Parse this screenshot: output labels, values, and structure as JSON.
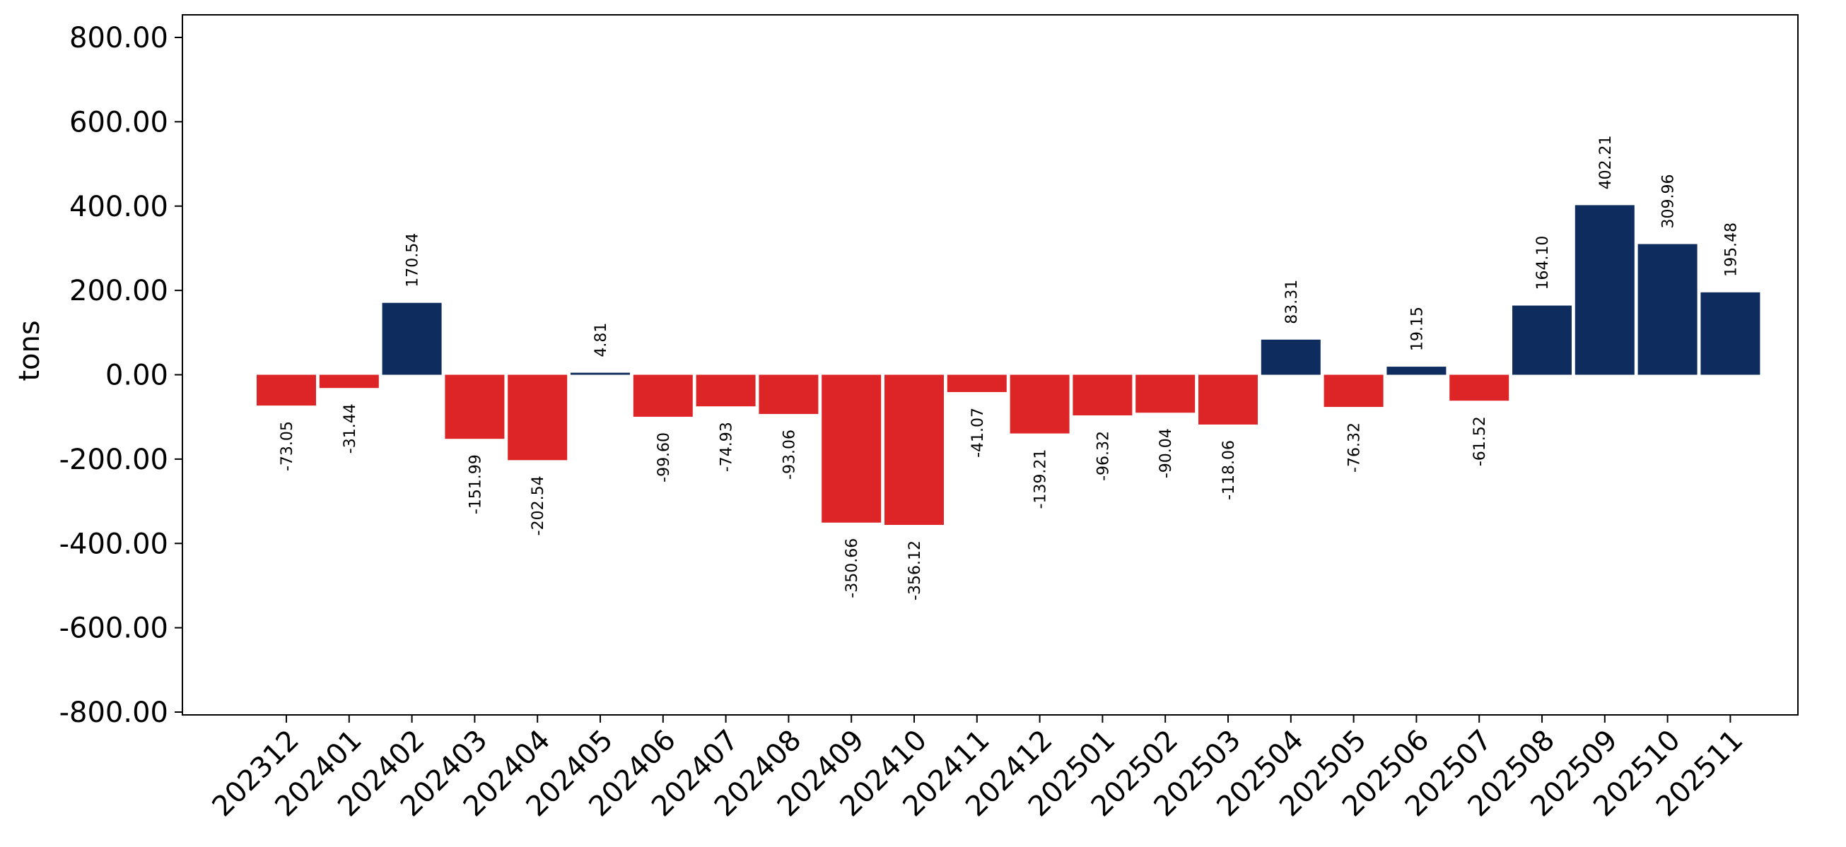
{
  "chart_data": {
    "type": "bar",
    "title": "",
    "xlabel": "",
    "ylabel": "tons",
    "ylim": [
      -800,
      800
    ],
    "yticks": [
      -800,
      -600,
      -400,
      -200,
      0,
      200,
      400,
      600,
      800
    ],
    "ytick_labels": [
      "-800.00",
      "-600.00",
      "-400.00",
      "-200.00",
      "0.00",
      "200.00",
      "400.00",
      "600.00",
      "800.00"
    ],
    "grid": false,
    "legend": "none",
    "colors": {
      "positive": "#0e2c5e",
      "negative": "#dd2427"
    },
    "categories": [
      "202312",
      "202401",
      "202402",
      "202403",
      "202404",
      "202405",
      "202406",
      "202407",
      "202408",
      "202409",
      "202410",
      "202411",
      "202412",
      "202501",
      "202502",
      "202503",
      "202504",
      "202505",
      "202506",
      "202507",
      "202508",
      "202509",
      "202510",
      "202511"
    ],
    "values": [
      -73.05,
      -31.44,
      170.54,
      -151.99,
      -202.54,
      4.81,
      -99.6,
      -74.93,
      -93.06,
      -350.66,
      -356.12,
      -41.07,
      -139.21,
      -96.32,
      -90.04,
      -118.06,
      83.31,
      -76.32,
      19.15,
      -61.52,
      164.1,
      402.21,
      309.96,
      195.48
    ],
    "value_labels": [
      "-73.05",
      "-31.44",
      "170.54",
      "-151.99",
      "-202.54",
      "4.81",
      "-99.60",
      "-74.93",
      "-93.06",
      "-350.66",
      "-356.12",
      "-41.07",
      "-139.21",
      "-96.32",
      "-90.04",
      "-118.06",
      "83.31",
      "-76.32",
      "19.15",
      "-61.52",
      "164.10",
      "402.21",
      "309.96",
      "195.48"
    ]
  }
}
